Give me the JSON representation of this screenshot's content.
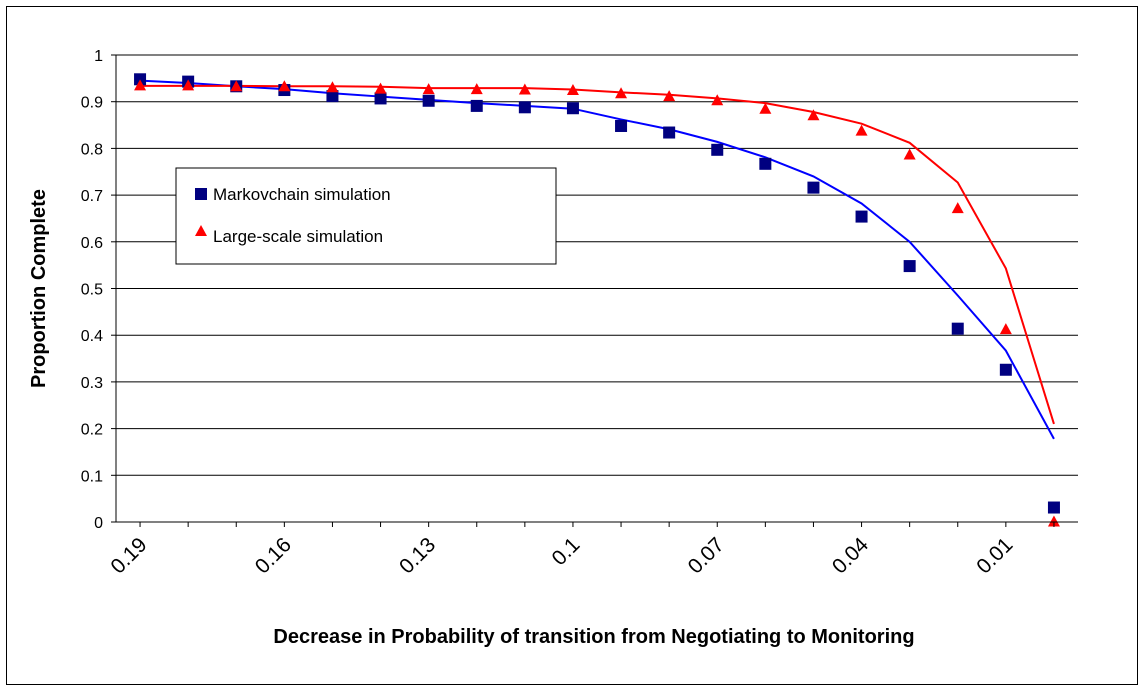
{
  "chart_data": {
    "type": "scatter",
    "title": "",
    "xlabel": "Decrease in Probability of transition from Negotiating to Monitoring",
    "ylabel": "Proportion Complete",
    "x_tick_labels": [
      "0.19",
      "0.16",
      "0.13",
      "0.1",
      "0.07",
      "0.04",
      "0.01"
    ],
    "x": [
      0.19,
      0.18,
      0.17,
      0.16,
      0.15,
      0.14,
      0.13,
      0.12,
      0.11,
      0.1,
      0.09,
      0.08,
      0.07,
      0.06,
      0.05,
      0.04,
      0.03,
      0.02,
      0.01,
      0.0
    ],
    "xlim": [
      0.195,
      -0.005
    ],
    "y_tick_labels": [
      "0",
      "0.1",
      "0.2",
      "0.3",
      "0.4",
      "0.5",
      "0.6",
      "0.7",
      "0.8",
      "0.9",
      "1"
    ],
    "ylim": [
      0,
      1
    ],
    "grid": "horizontal",
    "legend_position": "upper-left",
    "series": [
      {
        "name": "Markovchain simulation",
        "marker": "square",
        "color": "#000080",
        "values": [
          0.948,
          0.943,
          0.933,
          0.925,
          0.912,
          0.907,
          0.902,
          0.891,
          0.888,
          0.886,
          0.848,
          0.834,
          0.797,
          0.767,
          0.716,
          0.654,
          0.548,
          0.414,
          0.326,
          0.031
        ]
      },
      {
        "name": "Large-scale simulation",
        "marker": "triangle",
        "color": "#ff0000",
        "values": [
          0.935,
          0.935,
          0.933,
          0.933,
          0.931,
          0.928,
          0.927,
          0.927,
          0.926,
          0.925,
          0.918,
          0.912,
          0.903,
          0.885,
          0.871,
          0.838,
          0.787,
          0.672,
          0.413,
          0.001
        ]
      }
    ],
    "trend_lines": [
      {
        "color": "#0000ff",
        "values": [
          0.945,
          0.94,
          0.933,
          0.927,
          0.918,
          0.911,
          0.904,
          0.897,
          0.891,
          0.885,
          0.862,
          0.841,
          0.814,
          0.781,
          0.74,
          0.682,
          0.6,
          0.485,
          0.367,
          0.178
        ]
      },
      {
        "color": "#ff0000",
        "values": [
          0.934,
          0.934,
          0.934,
          0.933,
          0.933,
          0.932,
          0.929,
          0.929,
          0.929,
          0.926,
          0.92,
          0.915,
          0.907,
          0.897,
          0.878,
          0.853,
          0.812,
          0.727,
          0.543,
          0.21
        ]
      }
    ]
  }
}
